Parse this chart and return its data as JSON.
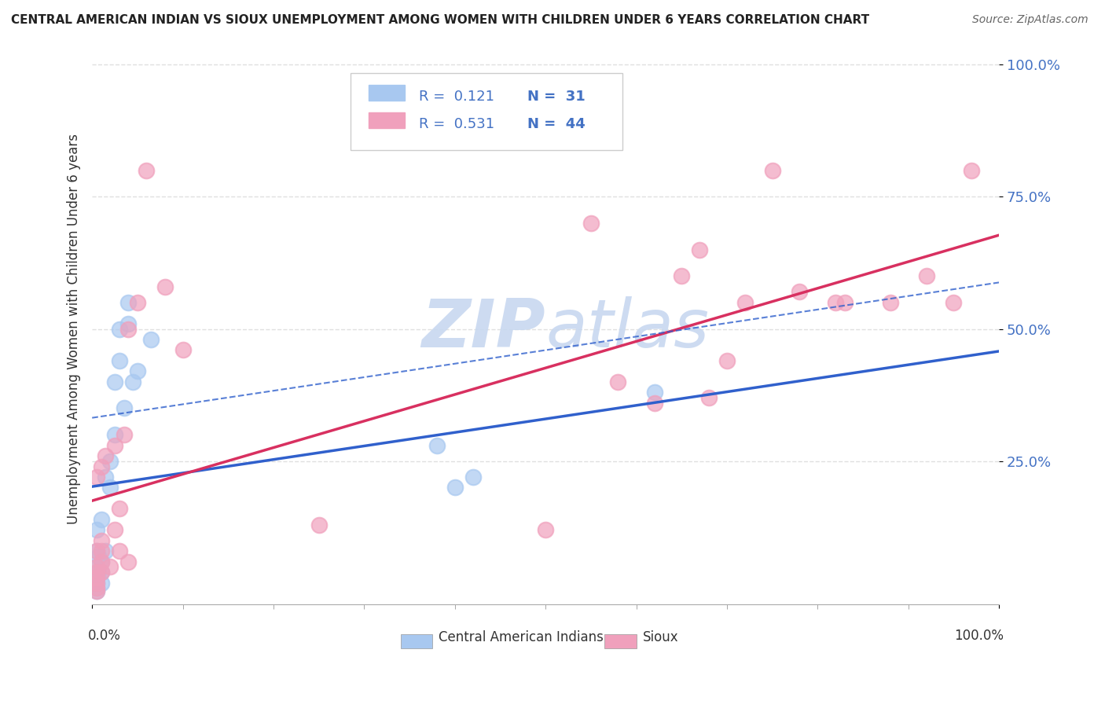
{
  "title": "CENTRAL AMERICAN INDIAN VS SIOUX UNEMPLOYMENT AMONG WOMEN WITH CHILDREN UNDER 6 YEARS CORRELATION CHART",
  "source": "Source: ZipAtlas.com",
  "ylabel": "Unemployment Among Women with Children Under 6 years",
  "legend_r1": "R =  0.121",
  "legend_n1": "N =  31",
  "legend_r2": "R =  0.531",
  "legend_n2": "N =  44",
  "blue_color": "#A8C8F0",
  "pink_color": "#F0A0BC",
  "blue_line_color": "#3060CC",
  "pink_line_color": "#D83060",
  "watermark_color": "#C8D8F0",
  "background_color": "#FFFFFF",
  "grid_color": "#E0E0E0",
  "ytick_color": "#4472C4",
  "xtick_color": "#333333",
  "blue_x": [
    0.005,
    0.005,
    0.005,
    0.005,
    0.005,
    0.005,
    0.005,
    0.007,
    0.007,
    0.01,
    0.01,
    0.01,
    0.01,
    0.015,
    0.015,
    0.02,
    0.02,
    0.025,
    0.025,
    0.03,
    0.03,
    0.035,
    0.04,
    0.04,
    0.045,
    0.05,
    0.065,
    0.38,
    0.4,
    0.42,
    0.62
  ],
  "blue_y": [
    0.005,
    0.01,
    0.02,
    0.03,
    0.05,
    0.08,
    0.12,
    0.04,
    0.07,
    0.02,
    0.04,
    0.06,
    0.14,
    0.08,
    0.22,
    0.2,
    0.25,
    0.3,
    0.4,
    0.44,
    0.5,
    0.35,
    0.51,
    0.55,
    0.4,
    0.42,
    0.48,
    0.28,
    0.2,
    0.22,
    0.38
  ],
  "pink_x": [
    0.005,
    0.005,
    0.005,
    0.005,
    0.005,
    0.005,
    0.005,
    0.005,
    0.01,
    0.01,
    0.01,
    0.01,
    0.01,
    0.015,
    0.02,
    0.025,
    0.025,
    0.03,
    0.03,
    0.035,
    0.04,
    0.04,
    0.05,
    0.06,
    0.08,
    0.1,
    0.25,
    0.5,
    0.55,
    0.58,
    0.62,
    0.65,
    0.67,
    0.68,
    0.7,
    0.72,
    0.75,
    0.78,
    0.82,
    0.83,
    0.88,
    0.92,
    0.95,
    0.97
  ],
  "pink_y": [
    0.005,
    0.01,
    0.02,
    0.03,
    0.04,
    0.05,
    0.08,
    0.22,
    0.04,
    0.06,
    0.08,
    0.1,
    0.24,
    0.26,
    0.05,
    0.12,
    0.28,
    0.08,
    0.16,
    0.3,
    0.06,
    0.5,
    0.55,
    0.8,
    0.58,
    0.46,
    0.13,
    0.12,
    0.7,
    0.4,
    0.36,
    0.6,
    0.65,
    0.37,
    0.44,
    0.55,
    0.8,
    0.57,
    0.55,
    0.55,
    0.55,
    0.6,
    0.55,
    0.8
  ],
  "xlim": [
    0,
    1
  ],
  "ylim": [
    -0.02,
    1.02
  ],
  "yticks": [
    0.25,
    0.5,
    0.75,
    1.0
  ],
  "ytick_labels": [
    "25.0%",
    "50.0%",
    "75.0%",
    "100.0%"
  ]
}
